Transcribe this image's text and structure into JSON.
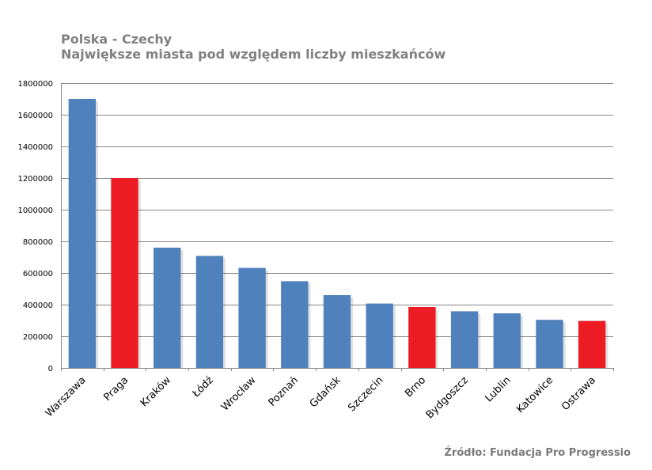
{
  "header": {
    "title": "Polska - Czechy",
    "subtitle": "Największe miasta pod względem liczby mieszkańców"
  },
  "footer": {
    "source": "Źródło: Fundacja Pro Progressio"
  },
  "colors": {
    "poland": "#4f81bd",
    "czech": "#ed1c24",
    "grid": "#888888",
    "source_text": "#7a7a7a"
  },
  "chart_data": {
    "type": "bar",
    "title": "Polska - Czechy",
    "subtitle": "Największe miasta pod względem liczby mieszkańców",
    "xlabel": "",
    "ylabel": "",
    "ylim": [
      0,
      1800000
    ],
    "yticks": [
      0,
      200000,
      400000,
      600000,
      800000,
      1000000,
      1200000,
      1400000,
      1600000,
      1800000
    ],
    "grid": true,
    "legend": "none",
    "categories": [
      "Warszawa",
      "Praga",
      "Kraków",
      "Łódź",
      "Wrocław",
      "Poznań",
      "Gdańsk",
      "Szczecin",
      "Brno",
      "Bydgoszcz",
      "Lublin",
      "Katowice",
      "Ostrawa"
    ],
    "values": [
      1700000,
      1200000,
      760000,
      708000,
      632000,
      548000,
      460000,
      407000,
      385000,
      358000,
      345000,
      304000,
      297000
    ],
    "country": [
      "PL",
      "CZ",
      "PL",
      "PL",
      "PL",
      "PL",
      "PL",
      "PL",
      "CZ",
      "PL",
      "PL",
      "PL",
      "CZ"
    ]
  }
}
